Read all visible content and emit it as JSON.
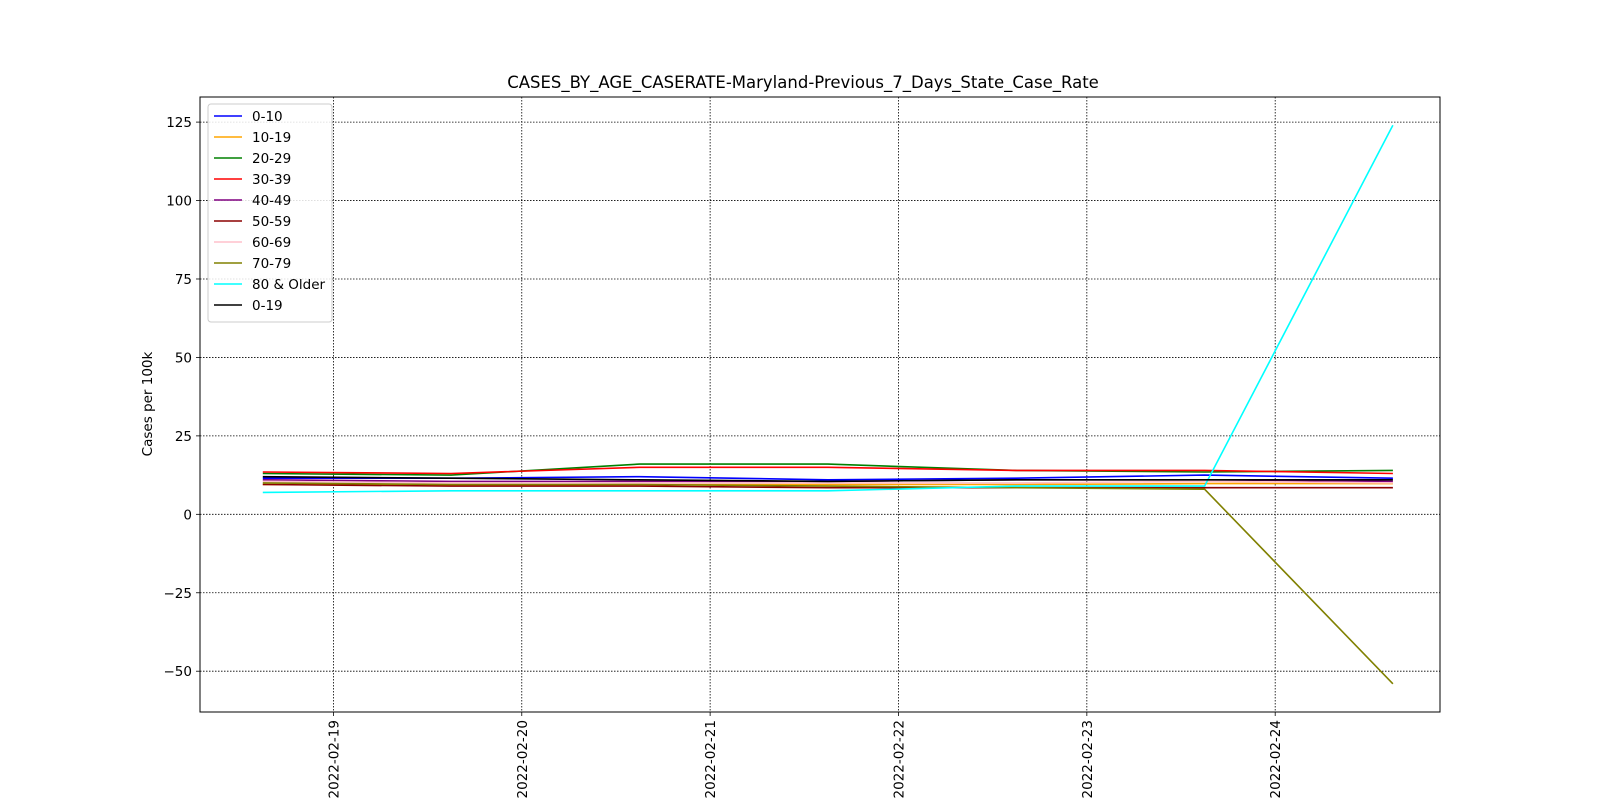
{
  "chart_data": {
    "type": "line",
    "title": "CASES_BY_AGE_CASERATE-Maryland-Previous_7_Days_State_Case_Rate",
    "xlabel": "",
    "ylabel": "Cases per 100k",
    "x": [
      "2022-02-18T15:00",
      "2022-02-19T15:00",
      "2022-02-20T15:00",
      "2022-02-21T15:00",
      "2022-02-22T15:00",
      "2022-02-23T15:00",
      "2022-02-24T15:00"
    ],
    "xlim": [
      "2022-02-18T07:00",
      "2022-02-24T21:00"
    ],
    "xticks": [
      "2022-02-19",
      "2022-02-20",
      "2022-02-21",
      "2022-02-22",
      "2022-02-23",
      "2022-02-24"
    ],
    "ylim": [
      -63,
      133
    ],
    "yticks": [
      -50,
      -25,
      0,
      25,
      50,
      75,
      100,
      125
    ],
    "grid": true,
    "legend_position": "top-left",
    "series": [
      {
        "name": "0-10",
        "color": "#0000ff",
        "values": [
          11.5,
          11.5,
          12.0,
          11.0,
          11.5,
          12.5,
          11.5
        ]
      },
      {
        "name": "10-19",
        "color": "#ffa500",
        "values": [
          9.5,
          9.3,
          9.5,
          9.5,
          9.5,
          9.8,
          9.8
        ]
      },
      {
        "name": "20-29",
        "color": "#008000",
        "values": [
          13.0,
          12.5,
          16.0,
          16.0,
          14.0,
          13.5,
          14.0
        ]
      },
      {
        "name": "30-39",
        "color": "#ff0000",
        "values": [
          13.5,
          13.0,
          15.0,
          15.0,
          14.0,
          14.0,
          13.0
        ]
      },
      {
        "name": "40-49",
        "color": "#800080",
        "values": [
          11.0,
          10.5,
          10.5,
          10.5,
          11.0,
          11.0,
          10.5
        ]
      },
      {
        "name": "50-59",
        "color": "#8b0000",
        "values": [
          9.5,
          9.0,
          9.0,
          8.5,
          8.5,
          8.5,
          8.5
        ]
      },
      {
        "name": "60-69",
        "color": "#ffc0cb",
        "values": [
          10.5,
          10.0,
          10.0,
          10.0,
          10.0,
          10.5,
          10.0
        ]
      },
      {
        "name": "70-79",
        "color": "#808000",
        "values": [
          10.0,
          9.5,
          9.5,
          9.0,
          8.5,
          8.0,
          -54.0
        ]
      },
      {
        "name": "80 & Older",
        "color": "#00ffff",
        "values": [
          7.0,
          7.5,
          7.5,
          7.5,
          9.0,
          9.0,
          124.0
        ]
      },
      {
        "name": "0-19",
        "color": "#000000",
        "values": [
          12.0,
          11.5,
          11.0,
          10.5,
          11.0,
          11.0,
          11.0
        ]
      }
    ]
  }
}
